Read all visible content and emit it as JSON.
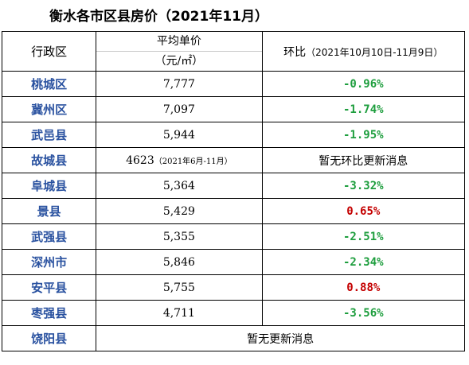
{
  "title": "衡水各市区县房价（2021年11月）",
  "header": {
    "district": "行政区",
    "price_line1": "平均单价",
    "price_line2": "（元/㎡）",
    "change_label": "环比",
    "change_period": "（2021年10月10日-11月9日）"
  },
  "rows": [
    {
      "district": "桃城区",
      "price": "7,777",
      "change": "-0.96%",
      "trend": "down"
    },
    {
      "district": "冀州区",
      "price": "7,097",
      "change": "-1.74%",
      "trend": "down"
    },
    {
      "district": "武邑县",
      "price": "5,944",
      "change": "-1.95%",
      "trend": "down"
    },
    {
      "district": "故城县",
      "price": "4623",
      "price_note": "（2021年6月-11月）",
      "change": "暂无环比更新消息",
      "trend": "none"
    },
    {
      "district": "阜城县",
      "price": "5,364",
      "change": "-3.32%",
      "trend": "down"
    },
    {
      "district": "景县",
      "price": "5,429",
      "change": "0.65%",
      "trend": "up"
    },
    {
      "district": "武强县",
      "price": "5,355",
      "change": "-2.51%",
      "trend": "down"
    },
    {
      "district": "深州市",
      "price": "5,846",
      "change": "-2.34%",
      "trend": "down"
    },
    {
      "district": "安平县",
      "price": "5,755",
      "change": "0.88%",
      "trend": "up"
    },
    {
      "district": "枣强县",
      "price": "4,711",
      "change": "-3.56%",
      "trend": "down"
    },
    {
      "district": "饶阳县",
      "merged_text": "暂无更新消息"
    }
  ],
  "colors": {
    "district_text": "#2a52a0",
    "negative": "#1e9e3e",
    "positive": "#c40000"
  }
}
